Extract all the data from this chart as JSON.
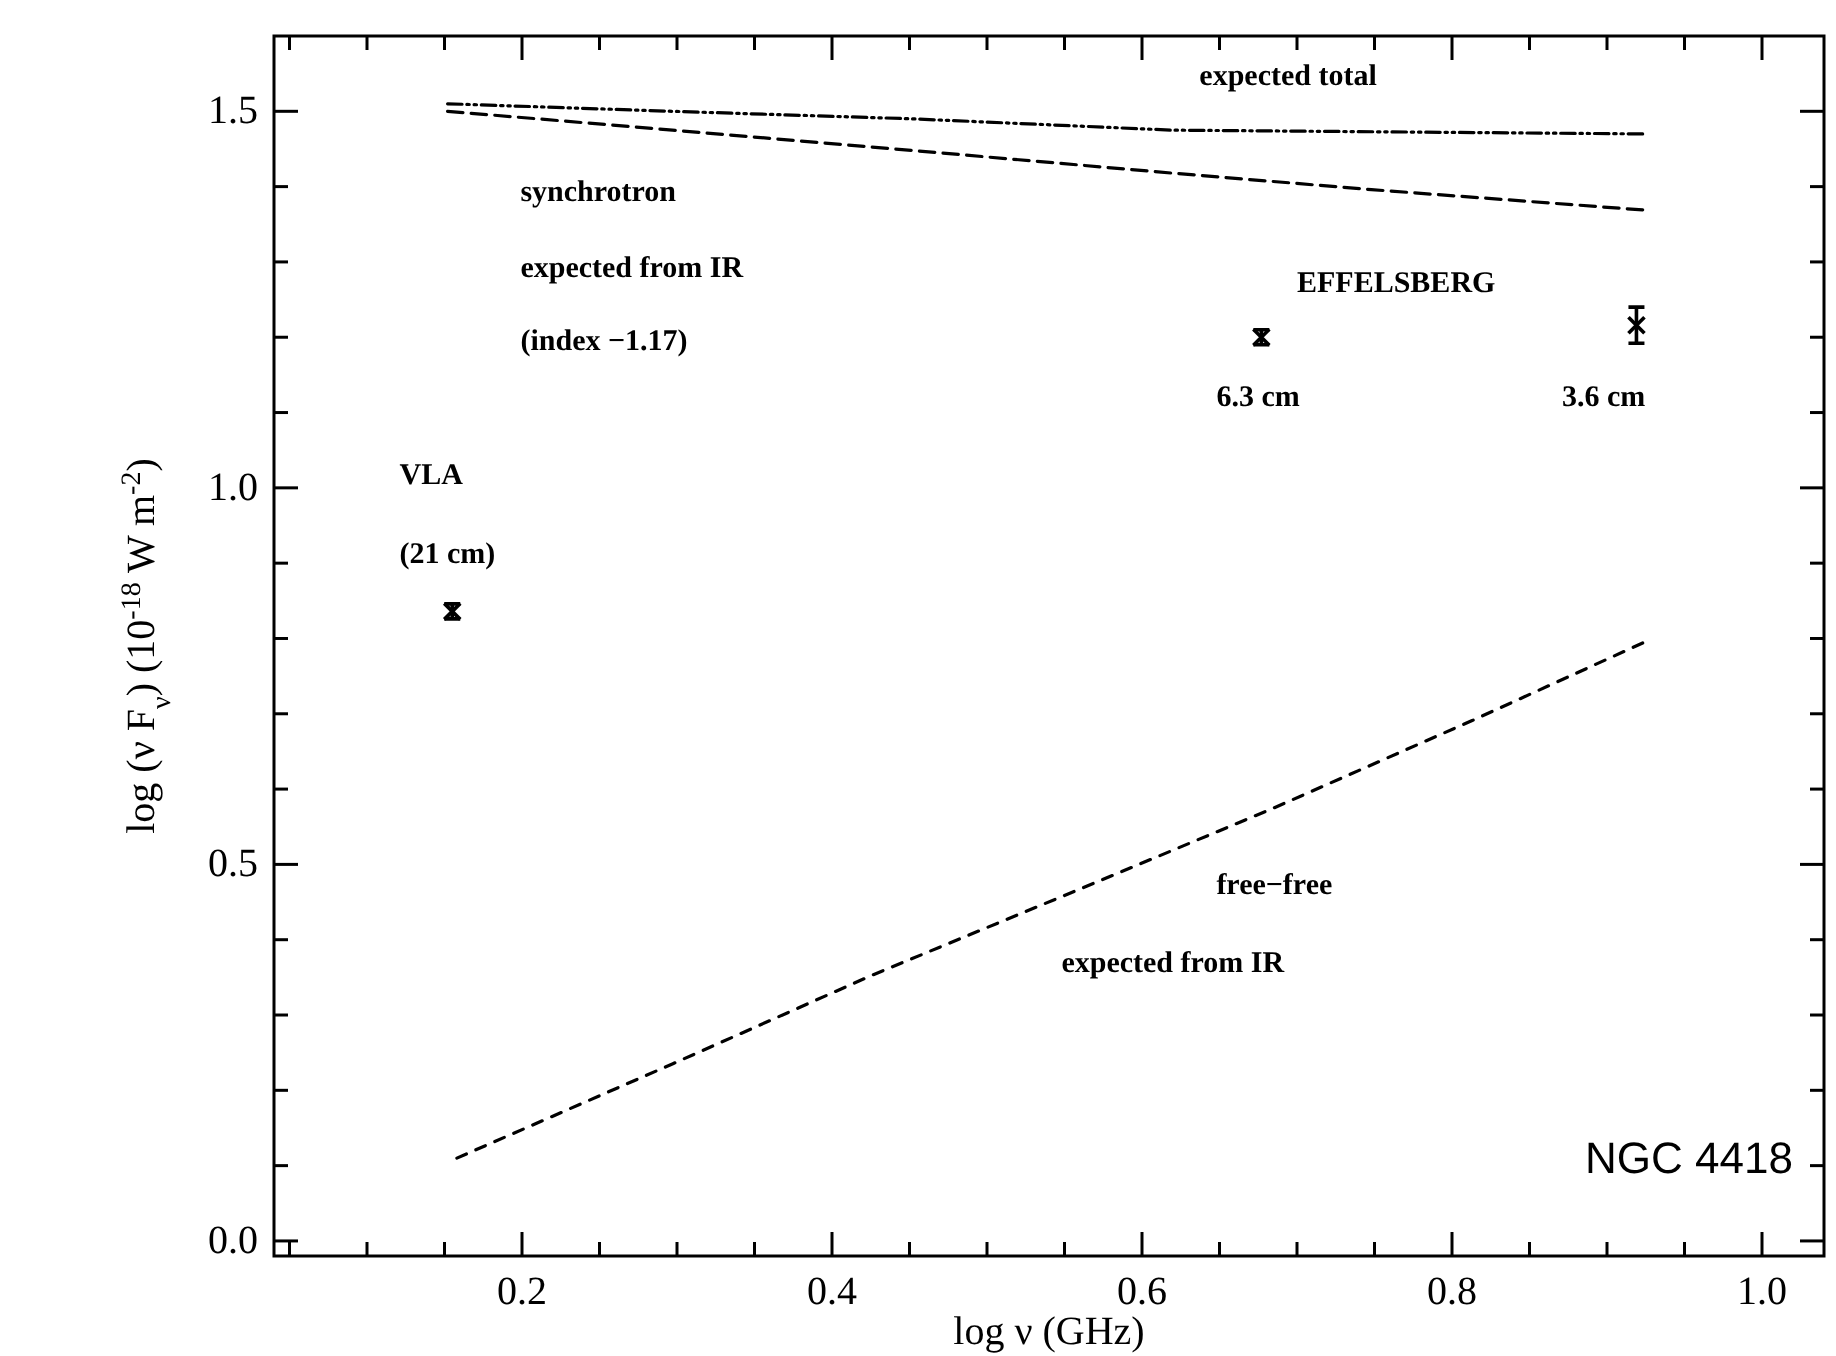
{
  "chart_data": {
    "type": "line",
    "xlabel": "log ν (GHz)",
    "ylabel": "log (ν F$_{ν}$) (10$^{-18}$ W m$^{-2}$)",
    "xlim": [
      0.04,
      1.04
    ],
    "ylim": [
      -0.02,
      1.6
    ],
    "xticks": [
      {
        "value": 0.05,
        "label": null
      },
      {
        "value": 0.1,
        "label": null
      },
      {
        "value": 0.15,
        "label": null
      },
      {
        "value": 0.2,
        "label": "0.2"
      },
      {
        "value": 0.25,
        "label": null
      },
      {
        "value": 0.3,
        "label": null
      },
      {
        "value": 0.35,
        "label": null
      },
      {
        "value": 0.4,
        "label": "0.4"
      },
      {
        "value": 0.45,
        "label": null
      },
      {
        "value": 0.5,
        "label": null
      },
      {
        "value": 0.55,
        "label": null
      },
      {
        "value": 0.6,
        "label": "0.6"
      },
      {
        "value": 0.65,
        "label": null
      },
      {
        "value": 0.7,
        "label": null
      },
      {
        "value": 0.75,
        "label": null
      },
      {
        "value": 0.8,
        "label": "0.8"
      },
      {
        "value": 0.85,
        "label": null
      },
      {
        "value": 0.9,
        "label": null
      },
      {
        "value": 0.95,
        "label": null
      },
      {
        "value": 1.0,
        "label": "1.0"
      }
    ],
    "yticks": [
      {
        "value": 0,
        "label": "0.0"
      },
      {
        "value": 0.1,
        "label": null
      },
      {
        "value": 0.2,
        "label": null
      },
      {
        "value": 0.3,
        "label": null
      },
      {
        "value": 0.4,
        "label": null
      },
      {
        "value": 0.5,
        "label": "0.5"
      },
      {
        "value": 0.6,
        "label": null
      },
      {
        "value": 0.7,
        "label": null
      },
      {
        "value": 0.8,
        "label": null
      },
      {
        "value": 0.9,
        "label": null
      },
      {
        "value": 1.0,
        "label": "1.0"
      },
      {
        "value": 1.1,
        "label": null
      },
      {
        "value": 1.2,
        "label": null
      },
      {
        "value": 1.3,
        "label": null
      },
      {
        "value": 1.4,
        "label": null
      },
      {
        "value": 1.5,
        "label": "1.5"
      }
    ],
    "grid": false,
    "series": [
      {
        "color": "#000000",
        "line_style": "dashdotdot",
        "marker": "none",
        "x": [
          0.152,
          0.297,
          0.452,
          0.619,
          0.923
        ],
        "values": [
          1.51,
          1.5,
          1.49,
          1.475,
          1.47
        ]
      },
      {
        "color": "#000000",
        "line_style": "dashed",
        "marker": "none",
        "x": [
          0.152,
          0.297,
          0.452,
          0.619,
          0.748,
          0.923
        ],
        "values": [
          1.5,
          1.475,
          1.448,
          1.418,
          1.396,
          1.369
        ]
      },
      {
        "color": "#000000",
        "line_style": "dotted",
        "marker": "none",
        "x": [
          0.158,
          0.297,
          0.426,
          0.555,
          0.684,
          0.813,
          0.923
        ],
        "values": [
          0.11,
          0.235,
          0.353,
          0.463,
          0.574,
          0.691,
          0.794
        ]
      },
      {
        "type": "scatter",
        "color": "#000000",
        "marker": "cross",
        "x": [
          0.155,
          0.677,
          0.919
        ],
        "values": [
          0.836,
          1.2,
          1.216
        ],
        "errors": [
          0.01,
          0.01,
          0.024
        ]
      }
    ],
    "annotations": [
      "expected total",
      "synchrotron",
      "expected from IR",
      "(index −1.17)",
      "EFFELSBERG",
      "6.3 cm",
      "3.6 cm",
      "VLA",
      "(21 cm)",
      "free−free",
      "expected from IR",
      "NGC 4418"
    ]
  }
}
